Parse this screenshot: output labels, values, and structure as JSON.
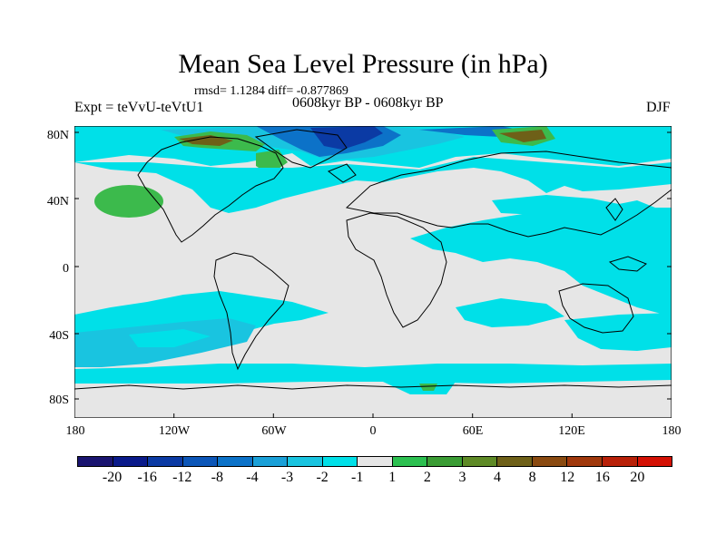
{
  "header": {
    "title": "Mean Sea Level Pressure (in hPa)",
    "stats": "rmsd= 1.1284 diff= -0.877869",
    "left_label": "Expt = teVvU-teVtU1",
    "center_label": "0608kyr BP - 0608kyr BP",
    "season": "DJF"
  },
  "axes": {
    "lat_ticks": [
      "80N",
      "40N",
      "0",
      "40S",
      "80S"
    ],
    "lon_ticks": [
      "180",
      "120W",
      "60W",
      "0",
      "60E",
      "120E",
      "180"
    ]
  },
  "colorbar": {
    "colors": [
      "#1a1470",
      "#0a1a8a",
      "#0b3aa4",
      "#0c56b8",
      "#0c72c8",
      "#1aa0d8",
      "#19c4e0",
      "#00e0e8",
      "#e6e6e6",
      "#2cc050",
      "#3a9c34",
      "#5e8a26",
      "#6e6018",
      "#8a4a10",
      "#a0380c",
      "#b82008",
      "#d41004"
    ],
    "labels": [
      "-20",
      "-16",
      "-12",
      "-8",
      "-4",
      "-3",
      "-2",
      "-1",
      "1",
      "2",
      "3",
      "4",
      "8",
      "12",
      "16",
      "20"
    ]
  },
  "map_colors": {
    "background": "#e6e6e6",
    "light_cyan": "#00e0e8",
    "medium_cyan": "#19c4e0",
    "blue": "#0c72c8",
    "dark_blue": "#0b3aa4",
    "green": "#3cba4c",
    "dark_green": "#5e8a26",
    "brown": "#6e6018",
    "coast": "#000000"
  }
}
